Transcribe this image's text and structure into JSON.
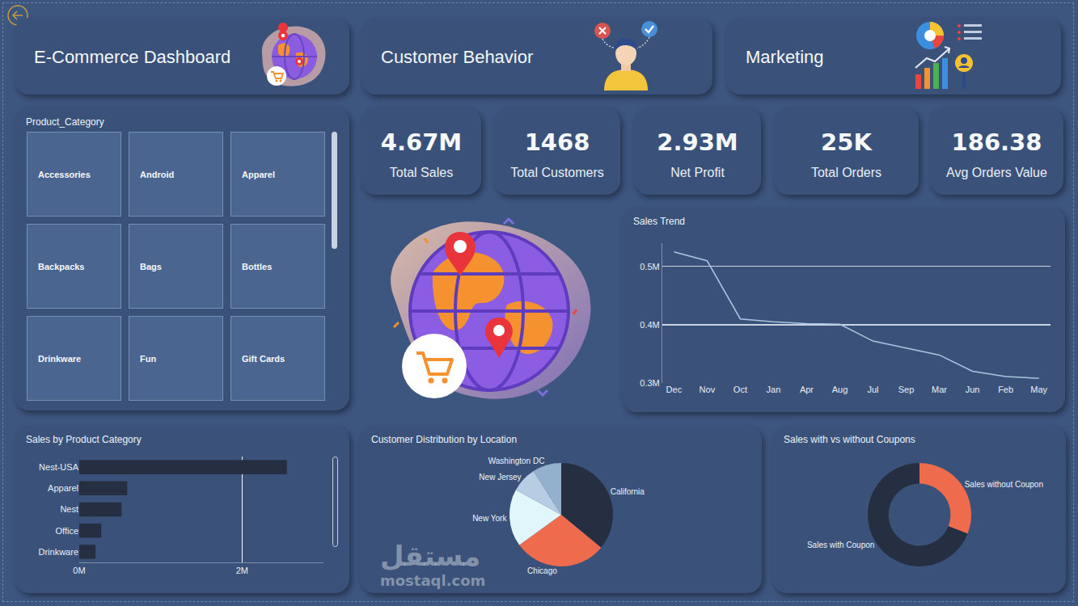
{
  "dashboard": {
    "nav": [
      "E-Commerce Dashboard",
      "Customer Behavior",
      "Marketing"
    ],
    "slicer": {
      "title": "Product_Category",
      "items": [
        "Accessories",
        "Android",
        "Apparel",
        "Backpacks",
        "Bags",
        "Bottles",
        "Drinkware",
        "Fun",
        "Gift Cards"
      ]
    },
    "kpis": [
      {
        "value": "4.67M",
        "label": "Total Sales"
      },
      {
        "value": "1468",
        "label": "Total Customers"
      },
      {
        "value": "2.93M",
        "label": "Net Profit"
      },
      {
        "value": "25K",
        "label": "Total Orders"
      },
      {
        "value": "186.38",
        "label": "Avg Orders Value"
      }
    ],
    "watermark": [
      "مستقل",
      "mostaql.com"
    ]
  },
  "chart_data": [
    {
      "type": "line",
      "title": "Sales Trend",
      "categories": [
        "Dec",
        "Nov",
        "Oct",
        "Jan",
        "Apr",
        "Aug",
        "Jul",
        "Sep",
        "Mar",
        "Jun",
        "Feb",
        "May"
      ],
      "values": [
        525000,
        510000,
        410000,
        405000,
        402000,
        401000,
        372000,
        360000,
        348000,
        320000,
        311000,
        308000
      ],
      "color": "#a9c6e0",
      "ylim": [
        300000,
        540000
      ],
      "yticks": [
        {
          "value": 300000,
          "label": "0.3M"
        },
        {
          "value": 400000,
          "label": "0.4M"
        },
        {
          "value": 500000,
          "label": "0.5M"
        }
      ],
      "grid": true
    },
    {
      "type": "bar",
      "title": "Sales by Product Category",
      "orientation": "horizontal",
      "categories": [
        "Nest-USA",
        "Apparel",
        "Nest",
        "Office",
        "Drinkware"
      ],
      "values": [
        2550000,
        590000,
        520000,
        270000,
        200000
      ],
      "color": "#262f42",
      "xlim": [
        0,
        3000000
      ],
      "xticks": [
        {
          "value": 0,
          "label": "0M"
        },
        {
          "value": 2000000,
          "label": "2M"
        }
      ],
      "grid": true
    },
    {
      "type": "pie",
      "title": "Customer Distribution by Location",
      "categories": [
        "California",
        "Chicago",
        "New York",
        "New Jersey",
        "Washington DC"
      ],
      "values": [
        36,
        29,
        18,
        8,
        9
      ],
      "colors": [
        "#262f42",
        "#ee6c4d",
        "#e1f6fa",
        "#b7cde3",
        "#93b0cd"
      ]
    },
    {
      "type": "donut",
      "title": "Sales with vs without Coupons",
      "categories": [
        "Sales without Coupon",
        "Sales with Coupon"
      ],
      "values": [
        31,
        69
      ],
      "colors": [
        "#ee6c4d",
        "#262f42"
      ]
    }
  ]
}
